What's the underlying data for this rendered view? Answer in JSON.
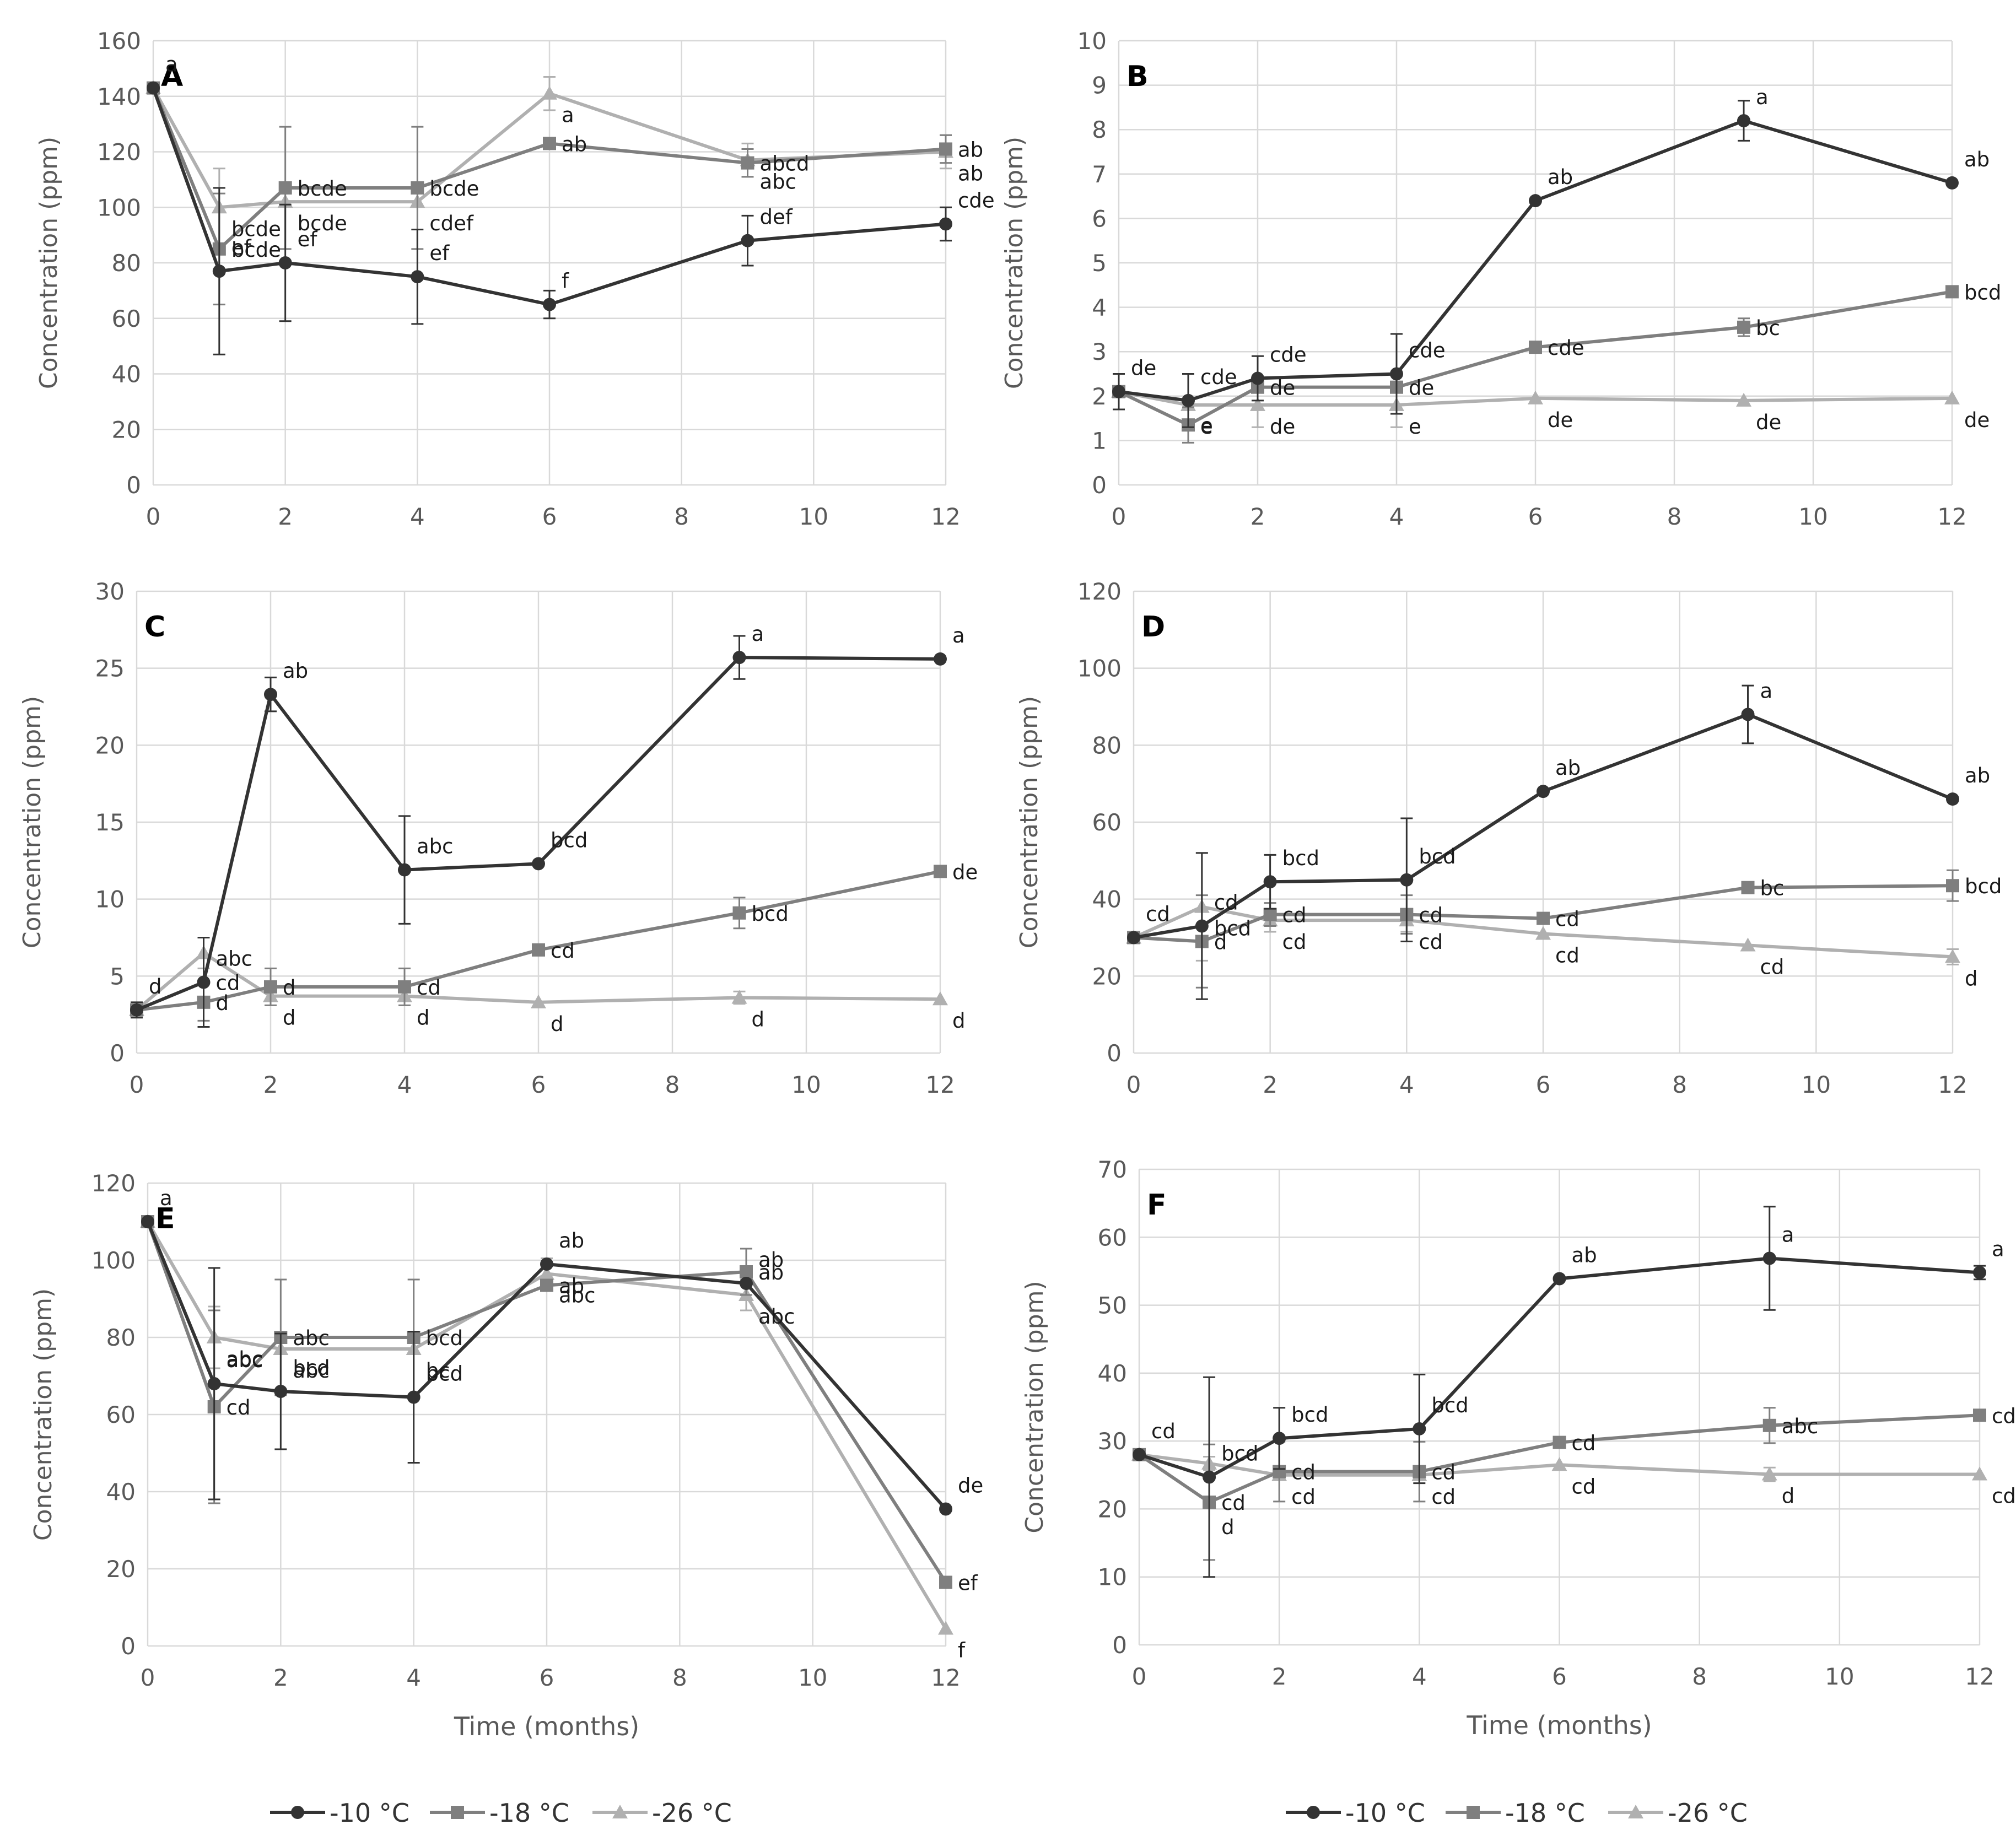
{
  "series_styles": [
    {
      "name": "-10 °C",
      "color": "#333333",
      "marker": "circle"
    },
    {
      "name": "-18 °C",
      "color": "#7f7f7f",
      "marker": "square"
    },
    {
      "name": "-26 °C",
      "color": "#b0b0b0",
      "marker": "triangle"
    }
  ],
  "legend_labels": [
    "-10 °C",
    "-18 °C",
    "-26 °C"
  ],
  "chart_data": [
    {
      "type": "line",
      "panel": "A",
      "ylabel": "Concentration (ppm)",
      "xlabel": "",
      "x": [
        0,
        1,
        2,
        4,
        6,
        9,
        12
      ],
      "ylim": [
        0,
        160
      ],
      "ystep": 20,
      "xlim": [
        0,
        12
      ],
      "xstep": 2,
      "series": [
        {
          "name": "-10 °C",
          "values": [
            143,
            77,
            80,
            75,
            65,
            88,
            94
          ],
          "err": [
            0,
            30,
            21,
            17,
            5,
            9,
            6
          ],
          "labels": [
            "a",
            "ef",
            "ef",
            "ef",
            "f",
            "def",
            "cde"
          ]
        },
        {
          "name": "-18 °C",
          "values": [
            143,
            85,
            107,
            107,
            123,
            116,
            121
          ],
          "err": [
            0,
            20,
            22,
            22,
            0,
            5,
            5
          ],
          "labels": [
            "",
            "bcde",
            "bcde",
            "bcde",
            "ab",
            "abcd",
            "ab"
          ]
        },
        {
          "name": "-26 °C",
          "values": [
            143,
            100,
            102,
            102,
            141,
            117,
            120
          ],
          "err": [
            0,
            14,
            0,
            0,
            6,
            6,
            6
          ],
          "labels": [
            "",
            "bcde",
            "bcde",
            "cdef",
            "a",
            "abc",
            "ab"
          ]
        }
      ]
    },
    {
      "type": "line",
      "panel": "B",
      "ylabel": "Concentration (ppm)",
      "xlabel": "",
      "x": [
        0,
        1,
        2,
        4,
        6,
        9,
        12
      ],
      "ylim": [
        0,
        10
      ],
      "ystep": 1,
      "xlim": [
        0,
        12
      ],
      "xstep": 2,
      "series": [
        {
          "name": "-10 °C",
          "values": [
            2.1,
            1.9,
            2.4,
            2.5,
            6.4,
            8.2,
            6.8
          ],
          "err": [
            0.4,
            0.6,
            0.5,
            0.9,
            0,
            0.45,
            0
          ],
          "labels": [
            "de",
            "cde",
            "cde",
            "cde",
            "ab",
            "a",
            "ab"
          ]
        },
        {
          "name": "-18 °C",
          "values": [
            2.1,
            1.35,
            2.2,
            2.2,
            3.1,
            3.55,
            4.35
          ],
          "err": [
            0,
            0.4,
            0,
            0,
            0,
            0.2,
            0
          ],
          "labels": [
            "",
            "e",
            "de",
            "de",
            "cde",
            "bc",
            "bcd"
          ]
        },
        {
          "name": "-26 °C",
          "values": [
            2.1,
            1.8,
            1.8,
            1.8,
            1.95,
            1.9,
            1.95
          ],
          "err": [
            0,
            0,
            0.5,
            0.5,
            0,
            0,
            0
          ],
          "labels": [
            "",
            "e",
            "de",
            "e",
            "de",
            "de",
            "de"
          ]
        }
      ]
    },
    {
      "type": "line",
      "panel": "C",
      "ylabel": "Concentration (ppm)",
      "xlabel": "",
      "x": [
        0,
        1,
        2,
        4,
        6,
        9,
        12
      ],
      "ylim": [
        0,
        30
      ],
      "ystep": 5,
      "xlim": [
        0,
        12
      ],
      "xstep": 2,
      "series": [
        {
          "name": "-10 °C",
          "values": [
            2.8,
            4.6,
            23.3,
            11.9,
            12.3,
            25.7,
            25.6
          ],
          "err": [
            0.5,
            2.9,
            1.1,
            3.5,
            0,
            1.4,
            0
          ],
          "labels": [
            "d",
            "abc cd",
            "ab",
            "abc",
            "bcd",
            "a",
            "a"
          ]
        },
        {
          "name": "-18 °C",
          "values": [
            2.8,
            3.3,
            4.3,
            4.3,
            6.7,
            9.1,
            11.8
          ],
          "err": [
            0,
            1.2,
            1.2,
            1.2,
            0,
            1,
            0
          ],
          "labels": [
            "",
            "d",
            "d",
            "cd",
            "cd",
            "bcd",
            "de"
          ]
        },
        {
          "name": "-26 °C",
          "values": [
            2.8,
            6.5,
            3.7,
            3.7,
            3.3,
            3.6,
            3.5
          ],
          "err": [
            0,
            1,
            0,
            0,
            0,
            0.4,
            0
          ],
          "labels": [
            "",
            "",
            "d",
            "d",
            "d",
            "d",
            "d"
          ]
        }
      ]
    },
    {
      "type": "line",
      "panel": "D",
      "ylabel": "Concentration (ppm)",
      "xlabel": "",
      "x": [
        0,
        1,
        2,
        4,
        6,
        9,
        12
      ],
      "ylim": [
        0,
        120
      ],
      "ystep": 20,
      "xlim": [
        0,
        12
      ],
      "xstep": 2,
      "series": [
        {
          "name": "-10 °C",
          "values": [
            30,
            33,
            44.5,
            45,
            68,
            88,
            66
          ],
          "err": [
            0,
            19,
            7,
            16,
            0,
            7.5,
            0
          ],
          "labels": [
            "cd",
            "cd",
            "bcd",
            "bcd",
            "ab",
            "a",
            "ab"
          ]
        },
        {
          "name": "-18 °C",
          "values": [
            30,
            29,
            36,
            36,
            35,
            43,
            43.5
          ],
          "err": [
            0,
            12,
            3,
            5,
            0,
            0,
            4
          ],
          "labels": [
            "",
            "d",
            "cd",
            "cd",
            "cd",
            "bc",
            "bcd"
          ]
        },
        {
          "name": "-26 °C",
          "values": [
            30,
            38,
            34.5,
            34.5,
            31,
            28,
            25
          ],
          "err": [
            0,
            14,
            3,
            3,
            0,
            0,
            2
          ],
          "labels": [
            "",
            "bcd",
            "cd",
            "cd",
            "cd",
            "cd",
            "d"
          ]
        }
      ]
    },
    {
      "type": "line",
      "panel": "E",
      "ylabel": "Concentration (ppm)",
      "xlabel": "Time (months)",
      "x": [
        0,
        1,
        2,
        4,
        6,
        9,
        12
      ],
      "ylim": [
        0,
        120
      ],
      "ystep": 20,
      "xlim": [
        0,
        12
      ],
      "xstep": 2,
      "series": [
        {
          "name": "-10 °C",
          "values": [
            110,
            68,
            66,
            64.5,
            99,
            94,
            35.5
          ],
          "err": [
            0,
            30,
            15,
            17,
            0,
            0,
            0
          ],
          "labels": [
            "a",
            "abc",
            "bcd",
            "bcd",
            "ab",
            "ab",
            "de"
          ]
        },
        {
          "name": "-18 °C",
          "values": [
            110,
            62,
            80,
            80,
            93.5,
            97,
            16.5
          ],
          "err": [
            0,
            25,
            15,
            15,
            0,
            6,
            0
          ],
          "labels": [
            "",
            "cd",
            "abc",
            "bcd",
            "ab",
            "ab",
            "ef"
          ]
        },
        {
          "name": "-26 °C",
          "values": [
            110,
            80,
            77,
            77,
            96.5,
            91,
            4.5
          ],
          "err": [
            0,
            8,
            0,
            0,
            4,
            4,
            0
          ],
          "labels": [
            "",
            "abc",
            "abc",
            "bc",
            "abc",
            "abc",
            "f"
          ]
        }
      ]
    },
    {
      "type": "line",
      "panel": "F",
      "ylabel": "Concentration (ppm)",
      "xlabel": "Time (months)",
      "x": [
        0,
        1,
        2,
        4,
        6,
        9,
        12
      ],
      "ylim": [
        0,
        70
      ],
      "ystep": 10,
      "xlim": [
        0,
        12
      ],
      "xstep": 2,
      "series": [
        {
          "name": "-10 °C",
          "values": [
            28,
            24.7,
            30.4,
            31.8,
            53.9,
            56.9,
            54.8
          ],
          "err": [
            0,
            14.7,
            4.5,
            8,
            0,
            7.6,
            1
          ],
          "labels": [
            "cd",
            "bcd",
            "bcd",
            "bcd",
            "ab",
            "a",
            "a"
          ]
        },
        {
          "name": "-18 °C",
          "values": [
            28,
            21,
            25.5,
            25.5,
            29.8,
            32.3,
            33.8
          ],
          "err": [
            0,
            8.5,
            4.4,
            4.4,
            0,
            2.6,
            0
          ],
          "labels": [
            "",
            "cd d",
            "cd",
            "cd",
            "cd",
            "abc",
            "cd"
          ]
        },
        {
          "name": "-26 °C",
          "values": [
            28,
            26.7,
            25,
            25,
            26.5,
            25.1,
            25.1
          ],
          "err": [
            0,
            1,
            0,
            0,
            0,
            1,
            0
          ],
          "labels": [
            "",
            "",
            "cd",
            "cd",
            "cd",
            "d",
            "cd"
          ]
        }
      ]
    }
  ]
}
